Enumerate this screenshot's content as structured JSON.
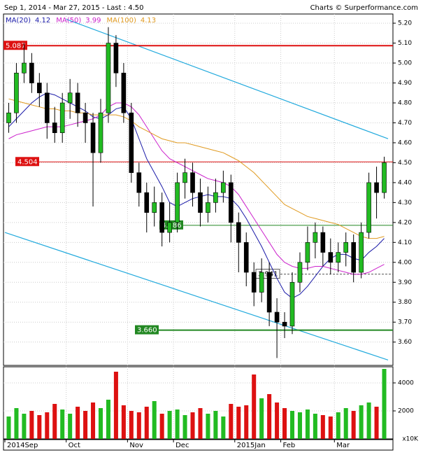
{
  "chart_data": {
    "type": "candlestick",
    "title": "Sep 1, 2014 - Mar 27, 2015 - Last : 4.50",
    "source": "Charts © Surperformance.com",
    "categories": [
      "2014Sep",
      null,
      null,
      null,
      null,
      null,
      null,
      null,
      "Oct",
      null,
      null,
      null,
      null,
      null,
      null,
      null,
      "Nov",
      null,
      null,
      null,
      null,
      null,
      "Dec",
      null,
      null,
      null,
      null,
      null,
      null,
      null,
      "2015Jan",
      null,
      null,
      null,
      null,
      null,
      "Feb",
      null,
      null,
      null,
      null,
      null,
      null,
      "Mar",
      null,
      null,
      null,
      null,
      null,
      null
    ],
    "open": [
      4.7,
      4.75,
      4.95,
      5.0,
      4.9,
      4.85,
      4.7,
      4.65,
      4.8,
      4.85,
      4.75,
      4.7,
      4.55,
      4.75,
      5.1,
      4.95,
      4.75,
      4.45,
      4.35,
      4.25,
      4.3,
      4.15,
      4.2,
      4.4,
      4.45,
      4.35,
      4.25,
      4.3,
      4.35,
      4.4,
      4.2,
      4.1,
      3.95,
      3.85,
      3.95,
      3.75,
      3.7,
      3.68,
      3.9,
      4.0,
      4.1,
      4.15,
      4.05,
      4.0,
      4.05,
      4.1,
      3.95,
      4.15,
      4.4,
      4.35
    ],
    "high": [
      4.8,
      5.0,
      5.1,
      5.05,
      4.95,
      4.9,
      4.78,
      4.85,
      4.92,
      4.9,
      4.8,
      4.75,
      4.82,
      5.18,
      5.14,
      5.0,
      4.8,
      4.5,
      4.4,
      4.38,
      4.35,
      4.3,
      4.45,
      4.52,
      4.5,
      4.42,
      4.38,
      4.42,
      4.46,
      4.44,
      4.25,
      4.15,
      4.0,
      4.02,
      4.0,
      3.82,
      3.75,
      3.95,
      4.05,
      4.18,
      4.2,
      4.18,
      4.12,
      4.1,
      4.15,
      4.14,
      4.2,
      4.45,
      4.48,
      4.53
    ],
    "low": [
      4.65,
      4.7,
      4.9,
      4.85,
      4.78,
      4.62,
      4.6,
      4.6,
      4.72,
      4.68,
      4.6,
      4.28,
      4.5,
      4.7,
      4.88,
      4.7,
      4.4,
      4.28,
      4.15,
      4.18,
      4.08,
      4.1,
      4.15,
      4.32,
      4.28,
      4.18,
      4.2,
      4.25,
      4.3,
      4.1,
      3.95,
      3.88,
      3.78,
      3.8,
      3.68,
      3.52,
      3.62,
      3.64,
      3.85,
      3.96,
      4.02,
      3.98,
      3.94,
      3.95,
      3.98,
      3.9,
      3.92,
      4.12,
      4.22,
      4.32
    ],
    "close": [
      4.75,
      4.95,
      5.0,
      4.9,
      4.85,
      4.7,
      4.65,
      4.8,
      4.85,
      4.75,
      4.7,
      4.55,
      4.75,
      5.1,
      4.95,
      4.75,
      4.45,
      4.35,
      4.25,
      4.3,
      4.15,
      4.2,
      4.4,
      4.45,
      4.35,
      4.25,
      4.3,
      4.35,
      4.4,
      4.2,
      4.1,
      3.95,
      3.85,
      3.95,
      3.75,
      3.7,
      3.68,
      3.9,
      4.0,
      4.1,
      4.15,
      4.05,
      4.0,
      4.05,
      4.1,
      3.95,
      4.15,
      4.4,
      4.35,
      4.5
    ],
    "up_color": "#22bb22",
    "down_color": "#dd1111",
    "series": [
      {
        "name": "MA(20)",
        "last": 4.12,
        "color": "#1a1aa8",
        "values": [
          4.68,
          4.72,
          4.76,
          4.8,
          4.83,
          4.85,
          4.84,
          4.82,
          4.8,
          4.78,
          4.76,
          4.73,
          4.72,
          4.74,
          4.77,
          4.78,
          4.72,
          4.62,
          4.52,
          4.45,
          4.38,
          4.3,
          4.28,
          4.3,
          4.32,
          4.33,
          4.34,
          4.33,
          4.33,
          4.32,
          4.28,
          4.22,
          4.15,
          4.08,
          4.0,
          3.92,
          3.85,
          3.82,
          3.84,
          3.88,
          3.93,
          3.98,
          4.02,
          4.04,
          4.04,
          4.02,
          4.01,
          4.05,
          4.08,
          4.12
        ]
      },
      {
        "name": "MA(50)",
        "last": 3.99,
        "color": "#cc22cc",
        "values": [
          4.62,
          4.64,
          4.65,
          4.66,
          4.67,
          4.68,
          4.68,
          4.68,
          4.69,
          4.7,
          4.71,
          4.72,
          4.74,
          4.78,
          4.8,
          4.8,
          4.78,
          4.74,
          4.68,
          4.62,
          4.56,
          4.52,
          4.5,
          4.48,
          4.46,
          4.44,
          4.42,
          4.41,
          4.4,
          4.38,
          4.34,
          4.28,
          4.22,
          4.16,
          4.1,
          4.04,
          4.0,
          3.98,
          3.97,
          3.97,
          3.98,
          3.98,
          3.97,
          3.96,
          3.95,
          3.94,
          3.94,
          3.95,
          3.97,
          3.99
        ]
      },
      {
        "name": "MA(100)",
        "last": 4.13,
        "color": "#e09a20",
        "values": [
          4.82,
          4.81,
          4.8,
          4.79,
          4.78,
          4.77,
          4.77,
          4.76,
          4.76,
          4.75,
          4.75,
          4.74,
          4.74,
          4.74,
          4.74,
          4.73,
          4.71,
          4.68,
          4.66,
          4.64,
          4.62,
          4.61,
          4.6,
          4.6,
          4.59,
          4.58,
          4.57,
          4.56,
          4.55,
          4.53,
          4.51,
          4.48,
          4.45,
          4.41,
          4.37,
          4.33,
          4.29,
          4.27,
          4.25,
          4.23,
          4.22,
          4.21,
          4.2,
          4.19,
          4.17,
          4.15,
          4.13,
          4.12,
          4.12,
          4.13
        ]
      }
    ],
    "levels": [
      {
        "value": 5.087,
        "color": "#dd1111"
      },
      {
        "value": 4.504,
        "color": "#dd1111"
      },
      {
        "value": 4.186,
        "color": "#228822"
      },
      {
        "value": 3.941,
        "color": "#555555"
      },
      {
        "value": 3.66,
        "label": "3.660",
        "color": "#228822"
      }
    ],
    "trendlines": [
      {
        "color": "#22aadd",
        "start": [
          8,
          5.22
        ],
        "end": [
          50,
          4.62
        ]
      },
      {
        "color": "#22aadd",
        "start": [
          0,
          4.15
        ],
        "end": [
          50,
          3.51
        ]
      }
    ],
    "ylim": [
      3.483,
      5.246
    ],
    "yticks": [
      {
        "value": 3.6,
        "label": "3.60"
      },
      {
        "value": 3.7,
        "label": "3.70"
      },
      {
        "value": 3.8,
        "label": "3.80"
      },
      {
        "value": 3.9,
        "label": "3.90"
      },
      {
        "value": 4.0,
        "label": "4.00"
      },
      {
        "value": 4.1,
        "label": "4.10"
      },
      {
        "value": 4.2,
        "label": "4.20"
      },
      {
        "value": 4.3,
        "label": "4.30"
      },
      {
        "value": 4.4,
        "label": "4.40"
      },
      {
        "value": 4.5,
        "label": "4.50"
      },
      {
        "value": 4.6,
        "label": "4.60"
      },
      {
        "value": 4.7,
        "label": "4.70"
      },
      {
        "value": 4.8,
        "label": "4.80"
      },
      {
        "value": 4.9,
        "label": "4.90"
      },
      {
        "value": 5.0,
        "label": "5.00"
      },
      {
        "value": 5.1,
        "label": "5.10"
      },
      {
        "value": 5.2,
        "label": "5.20"
      }
    ],
    "grid": true,
    "volume": [
      1600,
      2200,
      1800,
      2000,
      1700,
      1900,
      2500,
      2100,
      1800,
      2300,
      2000,
      2600,
      2200,
      2800,
      4800,
      2400,
      2000,
      1900,
      2300,
      2700,
      1800,
      2000,
      2100,
      1700,
      1900,
      2200,
      1800,
      2000,
      1600,
      2500,
      2300,
      2400,
      4600,
      2900,
      3200,
      2600,
      2200,
      2000,
      1900,
      2100,
      1800,
      1700,
      1600,
      1900,
      2200,
      2000,
      2400,
      2600,
      2300,
      5000
    ],
    "volume_ylim": [
      0,
      5000
    ],
    "volume_yticks": [
      2000,
      4000
    ],
    "volume_unit": "x10K"
  }
}
